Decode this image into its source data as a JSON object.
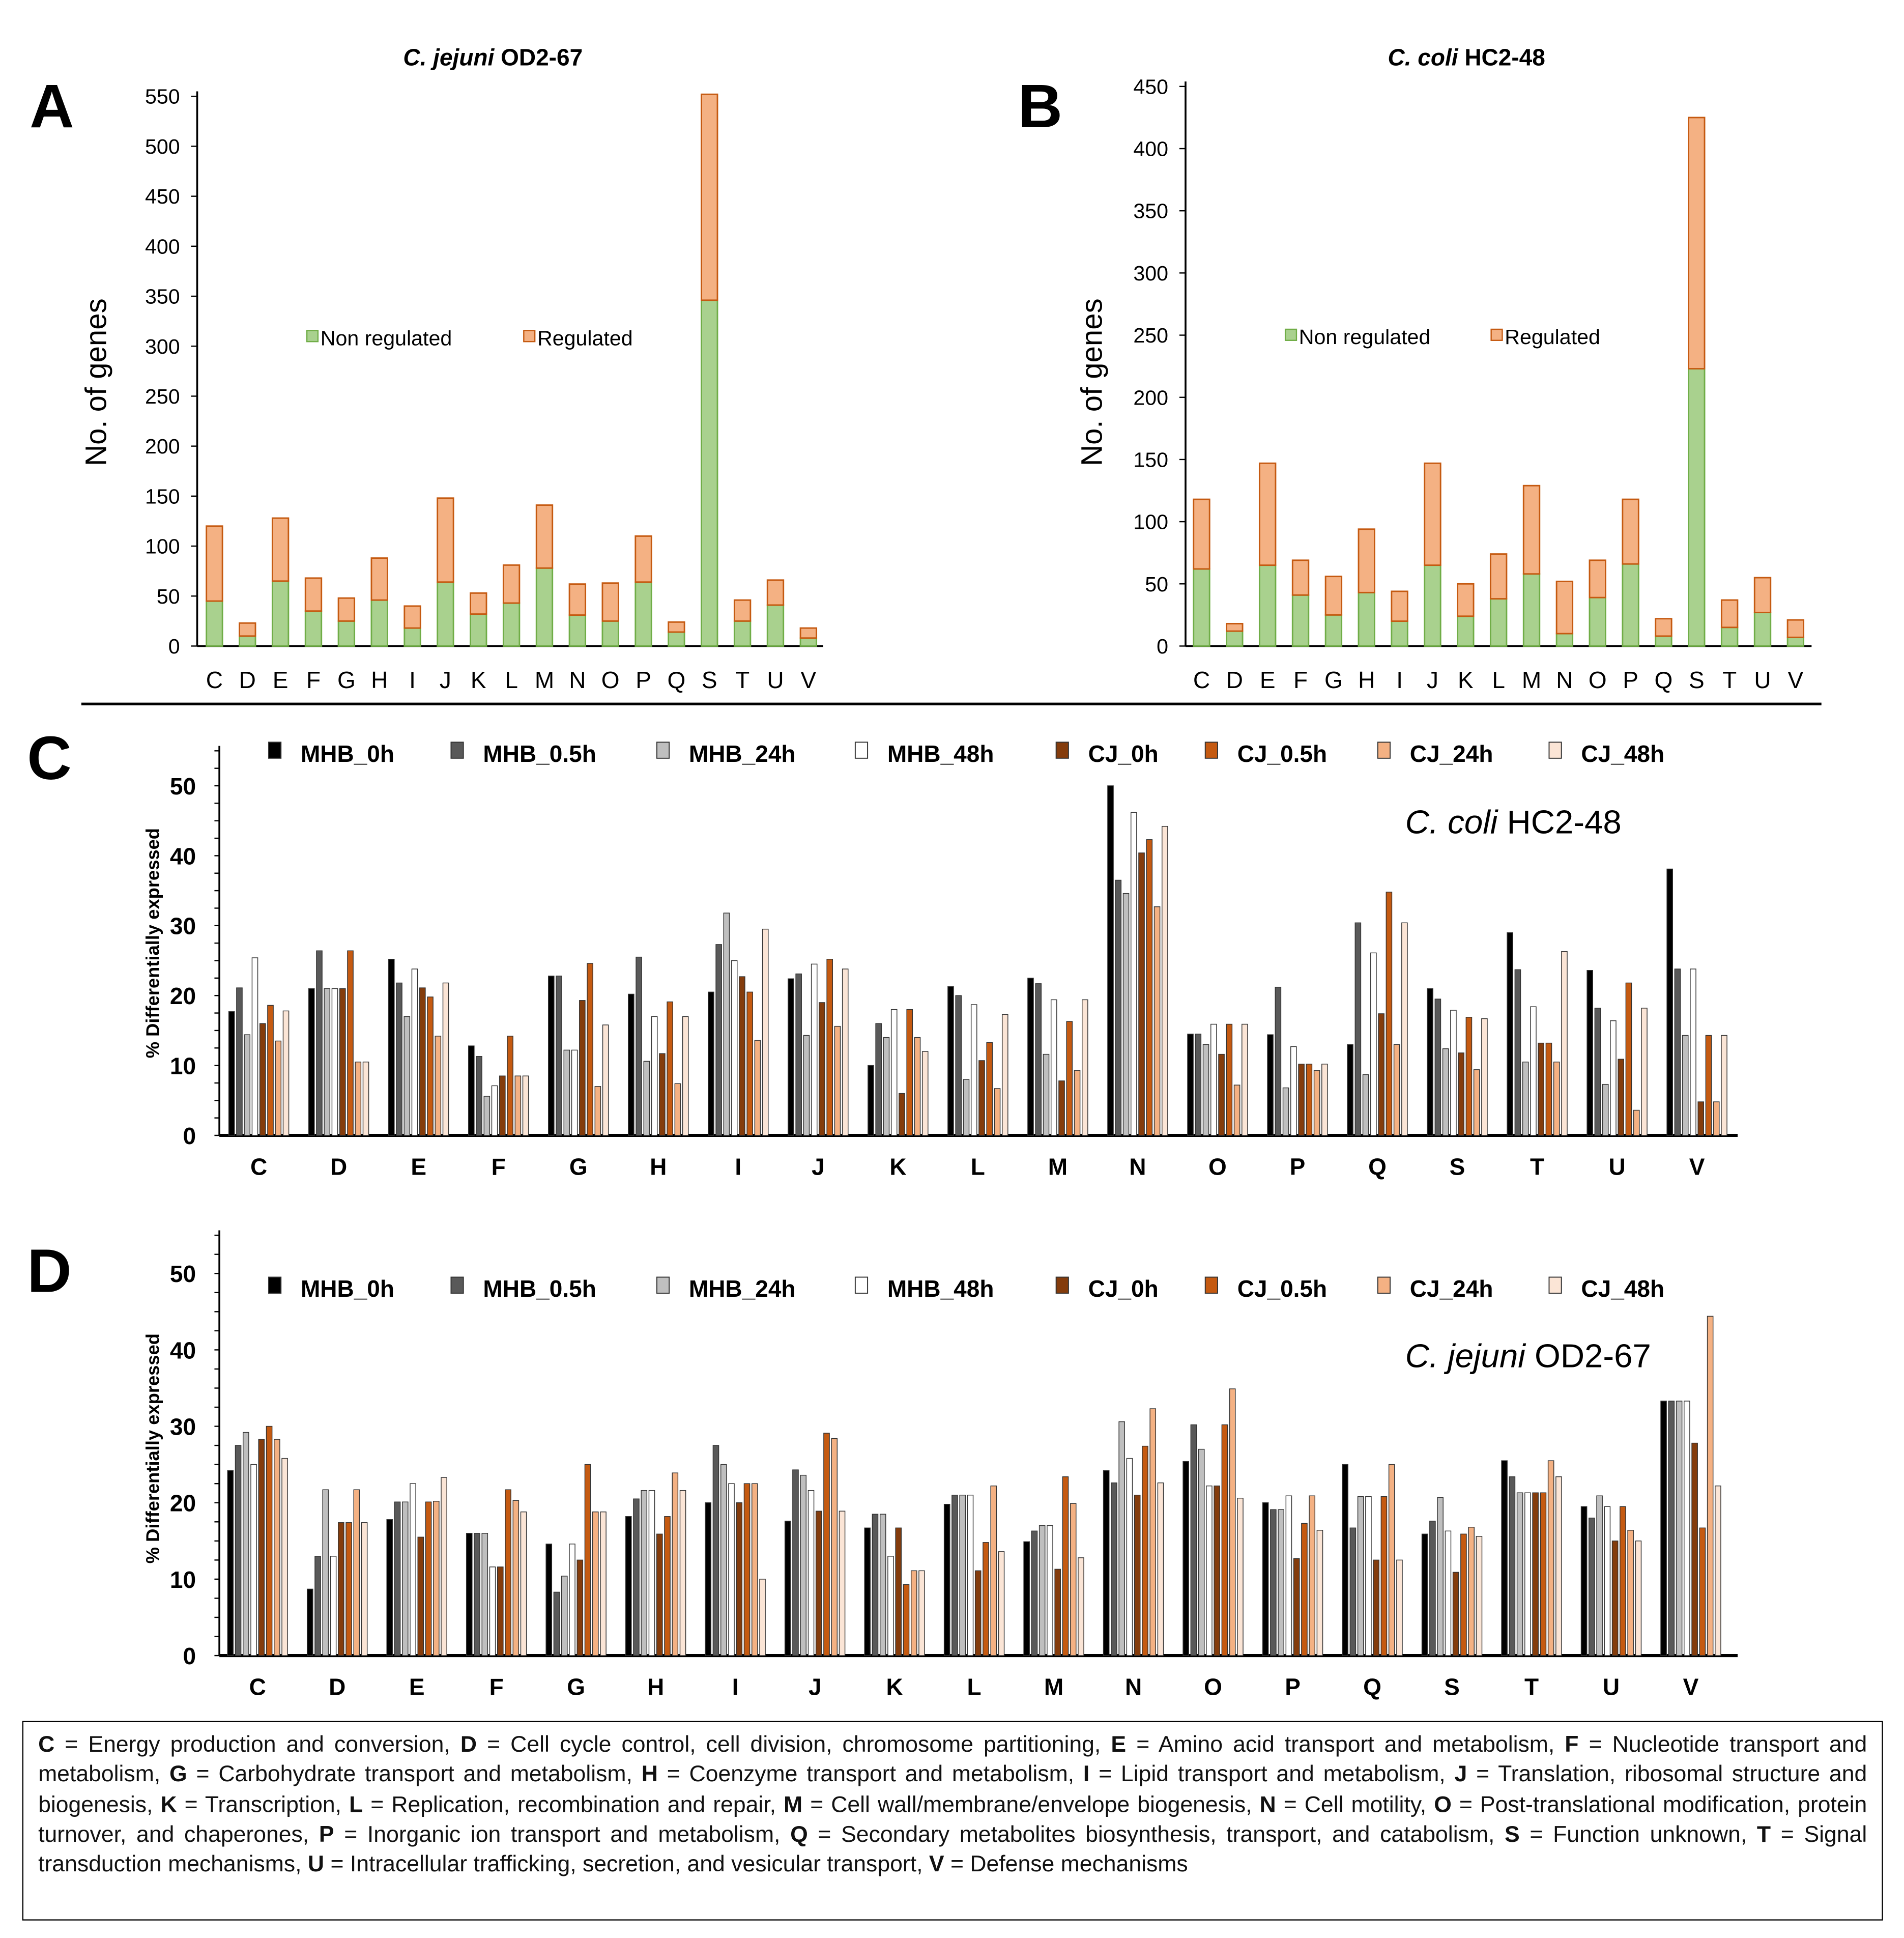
{
  "panels": {
    "A": "A",
    "B": "B",
    "C": "C",
    "D": "D"
  },
  "chart_data": [
    {
      "type": "bar",
      "stacked": true,
      "panel": "A",
      "title_italic": "C. jejuni",
      "title_rest": " OD2-67",
      "ylabel": "No. of genes",
      "ylim": [
        0,
        550
      ],
      "yticks": [
        0,
        50,
        100,
        150,
        200,
        250,
        300,
        350,
        400,
        450,
        500,
        550
      ],
      "categories": [
        "C",
        "D",
        "E",
        "F",
        "G",
        "H",
        "I",
        "J",
        "K",
        "L",
        "M",
        "N",
        "O",
        "P",
        "Q",
        "S",
        "T",
        "U",
        "V"
      ],
      "series": [
        {
          "name": "Non regulated",
          "color": "#a9d18e",
          "stroke": "#70ad47",
          "values": [
            45,
            10,
            65,
            35,
            25,
            46,
            18,
            64,
            32,
            43,
            78,
            31,
            25,
            64,
            14,
            346,
            25,
            41,
            8
          ]
        },
        {
          "name": "Regulated",
          "color": "#f4b183",
          "stroke": "#c55a11",
          "values": [
            75,
            13,
            63,
            33,
            23,
            42,
            22,
            84,
            21,
            38,
            63,
            31,
            38,
            46,
            10,
            206,
            21,
            25,
            10
          ]
        }
      ],
      "legend": "center"
    },
    {
      "type": "bar",
      "stacked": true,
      "panel": "B",
      "title_italic": "C. coli",
      "title_rest": " HC2-48",
      "ylabel": "No. of genes",
      "ylim": [
        0,
        450
      ],
      "yticks": [
        0,
        50,
        100,
        150,
        200,
        250,
        300,
        350,
        400,
        450
      ],
      "categories": [
        "C",
        "D",
        "E",
        "F",
        "G",
        "H",
        "I",
        "J",
        "K",
        "L",
        "M",
        "N",
        "O",
        "P",
        "Q",
        "S",
        "T",
        "U",
        "V"
      ],
      "series": [
        {
          "name": "Non regulated",
          "color": "#a9d18e",
          "stroke": "#70ad47",
          "values": [
            62,
            12,
            65,
            41,
            25,
            43,
            20,
            65,
            24,
            38,
            58,
            10,
            39,
            66,
            8,
            223,
            15,
            27,
            7
          ]
        },
        {
          "name": "Regulated",
          "color": "#f4b183",
          "stroke": "#c55a11",
          "values": [
            56,
            6,
            82,
            28,
            31,
            51,
            24,
            82,
            26,
            36,
            71,
            42,
            30,
            52,
            14,
            202,
            22,
            28,
            14
          ]
        }
      ],
      "legend": "center"
    },
    {
      "type": "bar",
      "panel": "C",
      "annotation_italic": "C. coli",
      "annotation_rest": " HC2-48",
      "ylabel": "% Differentially expressed",
      "ylim": [
        0,
        55
      ],
      "yticks": [
        0,
        10,
        20,
        30,
        40,
        50
      ],
      "categories": [
        "C",
        "D",
        "E",
        "F",
        "G",
        "H",
        "I",
        "J",
        "K",
        "L",
        "M",
        "N",
        "O",
        "P",
        "Q",
        "S",
        "T",
        "U",
        "V"
      ],
      "series_names": [
        "MHB_0h",
        "MHB_0.5h",
        "MHB_24h",
        "MHB_48h",
        "CJ_0h",
        "CJ_0.5h",
        "CJ_24h",
        "CJ_48h"
      ],
      "series_colors": [
        "#000000",
        "#595959",
        "#bfbfbf",
        "#ffffff",
        "#843c0c",
        "#c55a11",
        "#f4b183",
        "#fbe5d6"
      ],
      "values": [
        [
          17.7,
          21.1,
          14.4,
          25.4,
          16,
          18.6,
          13.5,
          17.8
        ],
        [
          21,
          26.4,
          21,
          21,
          21,
          26.4,
          10.5,
          10.5
        ],
        [
          25.2,
          21.8,
          17,
          23.8,
          21.1,
          19.8,
          14.2,
          21.8
        ],
        [
          12.8,
          11.3,
          5.6,
          7.1,
          8.5,
          14.2,
          8.5,
          8.5
        ],
        [
          22.8,
          22.8,
          12.2,
          12.2,
          19.3,
          24.6,
          7,
          15.8
        ],
        [
          20.2,
          25.5,
          10.6,
          17,
          11.7,
          19.1,
          7.4,
          17
        ],
        [
          20.5,
          27.3,
          31.8,
          25,
          22.7,
          20.5,
          13.6,
          29.5
        ],
        [
          22.4,
          23.1,
          14.3,
          24.5,
          19,
          25.2,
          15.6,
          23.8
        ],
        [
          10,
          16,
          14,
          18,
          6,
          18,
          14,
          12
        ],
        [
          21.3,
          20,
          8,
          18.7,
          10.7,
          13.3,
          6.7,
          17.3
        ],
        [
          22.5,
          21.7,
          11.6,
          19.4,
          7.8,
          16.3,
          9.3,
          19.4
        ],
        [
          50,
          36.5,
          34.6,
          46.2,
          40.4,
          42.3,
          32.7,
          44.2
        ],
        [
          14.5,
          14.5,
          13,
          15.9,
          11.6,
          15.9,
          7.2,
          15.9
        ],
        [
          14.4,
          21.2,
          6.8,
          12.7,
          10.2,
          10.2,
          9.3,
          10.2
        ],
        [
          13,
          30.4,
          8.7,
          26.1,
          17.4,
          34.8,
          13,
          30.4
        ],
        [
          21,
          19.5,
          12.4,
          17.9,
          11.8,
          16.9,
          9.4,
          16.7
        ],
        [
          29,
          23.7,
          10.5,
          18.4,
          13.2,
          13.2,
          10.5,
          26.3
        ],
        [
          23.6,
          18.2,
          7.3,
          16.4,
          10.9,
          21.8,
          3.6,
          18.2
        ],
        [
          38.1,
          23.8,
          14.3,
          23.8,
          4.8,
          14.3,
          4.8,
          14.3
        ]
      ],
      "legend": "top"
    },
    {
      "type": "bar",
      "panel": "D",
      "annotation_italic": "C. jejuni",
      "annotation_rest": " OD2-67",
      "ylabel": "% Differentially expressed",
      "ylim": [
        0,
        55
      ],
      "yticks": [
        0,
        10,
        20,
        30,
        40,
        50
      ],
      "categories": [
        "C",
        "D",
        "E",
        "F",
        "G",
        "H",
        "I",
        "J",
        "K",
        "L",
        "M",
        "N",
        "O",
        "P",
        "Q",
        "S",
        "T",
        "U",
        "V"
      ],
      "series_names": [
        "MHB_0h",
        "MHB_0.5h",
        "MHB_24h",
        "MHB_48h",
        "CJ_0h",
        "CJ_0.5h",
        "CJ_24h",
        "CJ_48h"
      ],
      "series_colors": [
        "#000000",
        "#595959",
        "#bfbfbf",
        "#ffffff",
        "#843c0c",
        "#c55a11",
        "#f4b183",
        "#fbe5d6"
      ],
      "values": [
        [
          24.2,
          27.5,
          29.2,
          25,
          28.3,
          30,
          28.3,
          25.8
        ],
        [
          8.7,
          13,
          21.7,
          13,
          17.4,
          17.4,
          21.7,
          17.4
        ],
        [
          17.8,
          20.1,
          20.1,
          22.5,
          15.5,
          20.1,
          20.2,
          23.3
        ],
        [
          16,
          16,
          16,
          11.6,
          11.6,
          21.7,
          20.3,
          18.8
        ],
        [
          14.6,
          8.3,
          10.4,
          14.6,
          12.5,
          25,
          18.8,
          18.8
        ],
        [
          18.2,
          20.5,
          21.6,
          21.6,
          15.9,
          18.2,
          23.9,
          21.6
        ],
        [
          20,
          27.5,
          25,
          22.5,
          20,
          22.5,
          22.5,
          10
        ],
        [
          17.6,
          24.3,
          23.6,
          21.6,
          18.9,
          29.1,
          28.4,
          18.9
        ],
        [
          16.7,
          18.5,
          18.5,
          13,
          16.7,
          9.3,
          11.1,
          11.1
        ],
        [
          19.8,
          21,
          21,
          21,
          11.1,
          14.8,
          22.2,
          13.6
        ],
        [
          14.9,
          16.3,
          17,
          17,
          11.3,
          23.4,
          19.9,
          12.8
        ],
        [
          24.2,
          22.6,
          30.6,
          25.8,
          21,
          27.4,
          32.3,
          22.6
        ],
        [
          25.4,
          30.2,
          27,
          22.2,
          22.2,
          30.2,
          34.9,
          20.6
        ],
        [
          20,
          19.1,
          19.1,
          20.9,
          12.7,
          17.3,
          20.9,
          16.4
        ],
        [
          25,
          16.7,
          20.8,
          20.8,
          12.5,
          20.8,
          25,
          12.5
        ],
        [
          15.9,
          17.6,
          20.7,
          16.3,
          10.9,
          15.9,
          16.8,
          15.6
        ],
        [
          25.5,
          23.4,
          21.3,
          21.3,
          21.3,
          21.3,
          25.5,
          23.4
        ],
        [
          19.5,
          18,
          20.9,
          19.5,
          15,
          19.5,
          16.4,
          15
        ],
        [
          33.3,
          33.3,
          33.3,
          33.3,
          27.8,
          16.7,
          44.4,
          22.2
        ]
      ],
      "legend": "top"
    }
  ],
  "footnote": [
    {
      "code": "C",
      "desc": " = Energy production and conversion, "
    },
    {
      "code": "D",
      "desc": " = Cell cycle control, cell division, chromosome partitioning, "
    },
    {
      "code": "E",
      "desc": " = Amino acid transport and metabolism, "
    },
    {
      "code": "F",
      "desc": " = Nucleotide transport and metabolism, "
    },
    {
      "code": "G",
      "desc": " = Carbohydrate transport and metabolism, "
    },
    {
      "code": "H",
      "desc": " = Coenzyme transport and metabolism, "
    },
    {
      "code": "I",
      "desc": " = Lipid transport and metabolism, "
    },
    {
      "code": "J",
      "desc": " = Translation, ribosomal structure and biogenesis, "
    },
    {
      "code": "K",
      "desc": " = Transcription, "
    },
    {
      "code": "L",
      "desc": " = Replication, recombination and repair, "
    },
    {
      "code": "M",
      "desc": " = Cell wall/membrane/envelope biogenesis, "
    },
    {
      "code": "N",
      "desc": " = Cell motility, "
    },
    {
      "code": "O",
      "desc": " = Post-translational modification, protein turnover, and chaperones, "
    },
    {
      "code": "P",
      "desc": " = Inorganic ion transport and metabolism, "
    },
    {
      "code": "Q",
      "desc": " = Secondary metabolites biosynthesis, transport, and catabolism, "
    },
    {
      "code": "S",
      "desc": " = Function unknown, "
    },
    {
      "code": "T",
      "desc": " = Signal transduction mechanisms, "
    },
    {
      "code": "U",
      "desc": " = Intracellular trafficking, secretion, and vesicular transport, "
    },
    {
      "code": "V",
      "desc": " = Defense mechanisms"
    }
  ]
}
